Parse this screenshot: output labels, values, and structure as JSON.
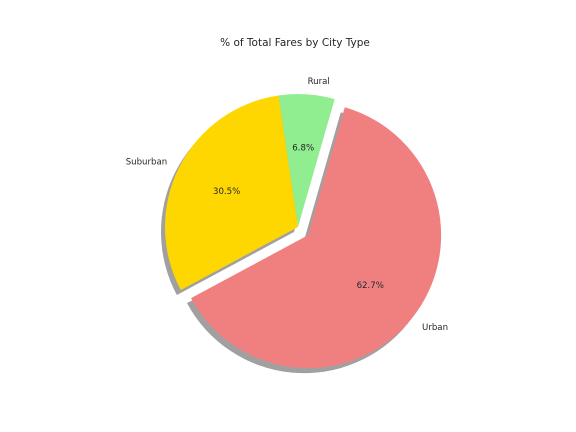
{
  "chart_data": {
    "type": "pie",
    "title": "% of Total Fares by City Type",
    "slices": [
      {
        "label": "Rural",
        "value": 6.8,
        "pct_label": "6.8%",
        "color": "#90ee90",
        "explode": false
      },
      {
        "label": "Suburban",
        "value": 30.5,
        "pct_label": "30.5%",
        "color": "#ffd700",
        "explode": false
      },
      {
        "label": "Urban",
        "value": 62.7,
        "pct_label": "62.7%",
        "color": "#f08080",
        "explode": true
      }
    ],
    "start_angle_deg": 74,
    "counterclockwise": true,
    "shadow": true
  }
}
